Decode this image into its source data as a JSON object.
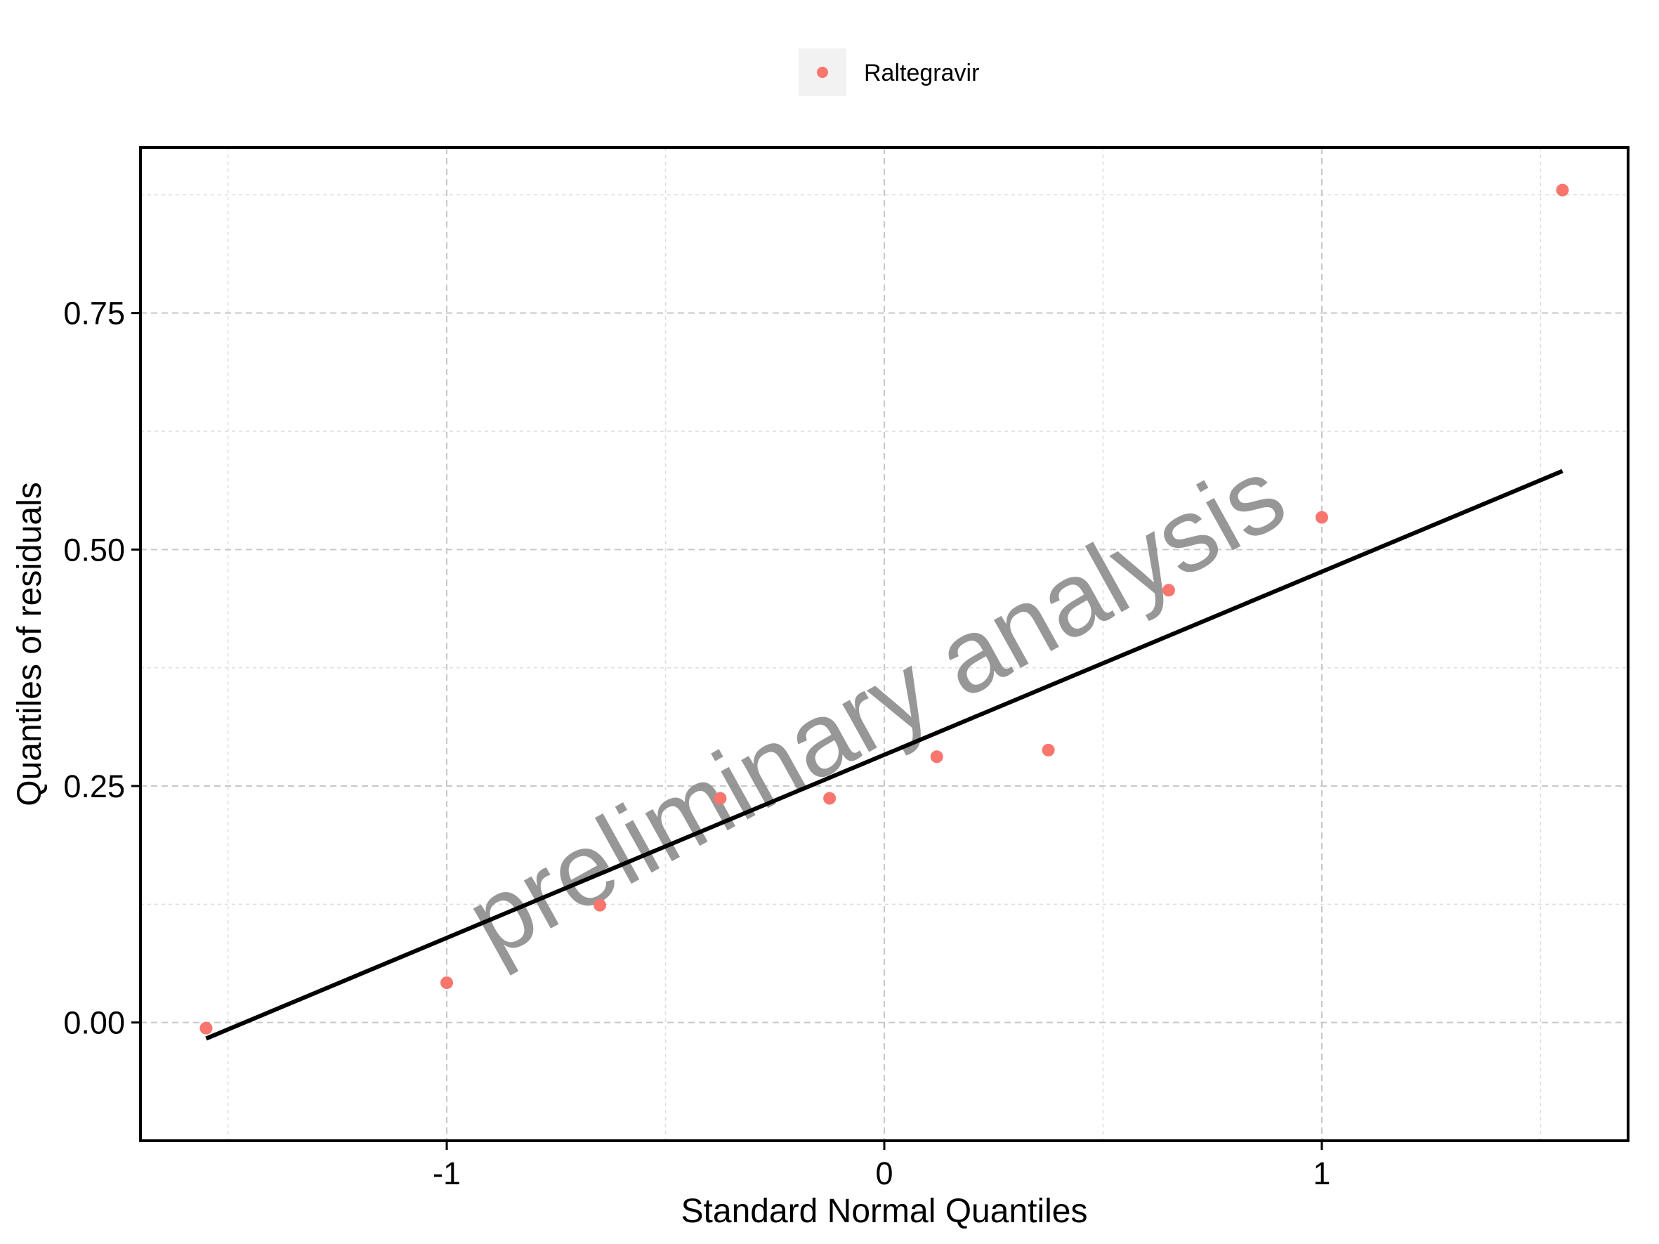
{
  "chart_data": {
    "type": "scatter",
    "title": "",
    "xlabel": "Standard Normal Quantiles",
    "ylabel": "Quantiles of residuals",
    "xlim": [
      -1.7,
      1.7
    ],
    "ylim": [
      -0.125,
      0.925
    ],
    "x_ticks": [
      -1,
      0,
      1
    ],
    "x_tick_labels": [
      "-1",
      "0",
      "1"
    ],
    "x_minor": [
      -1.5,
      -0.5,
      0.5,
      1.5
    ],
    "y_ticks": [
      0,
      0.25,
      0.5,
      0.75
    ],
    "y_tick_labels": [
      "0.00",
      "0.25",
      "0.50",
      "0.75"
    ],
    "y_minor": [
      0.125,
      0.375,
      0.625,
      0.875
    ],
    "grid": true,
    "legend": {
      "position": "top-center"
    },
    "series": [
      {
        "name": "Raltegravir",
        "color": "#f8766d",
        "points": [
          {
            "x": -1.55,
            "y": -0.006
          },
          {
            "x": -1.0,
            "y": 0.042
          },
          {
            "x": -0.65,
            "y": 0.124
          },
          {
            "x": -0.375,
            "y": 0.237
          },
          {
            "x": -0.125,
            "y": 0.237
          },
          {
            "x": 0.12,
            "y": 0.281
          },
          {
            "x": 0.375,
            "y": 0.288
          },
          {
            "x": 0.65,
            "y": 0.457
          },
          {
            "x": 1.0,
            "y": 0.534
          },
          {
            "x": 1.55,
            "y": 0.88
          }
        ]
      }
    ],
    "reference_line": {
      "color": "#000000",
      "from": {
        "x": -1.55,
        "y": -0.017
      },
      "to": {
        "x": 1.55,
        "y": 0.583
      }
    },
    "watermark": "preliminary analysis"
  }
}
